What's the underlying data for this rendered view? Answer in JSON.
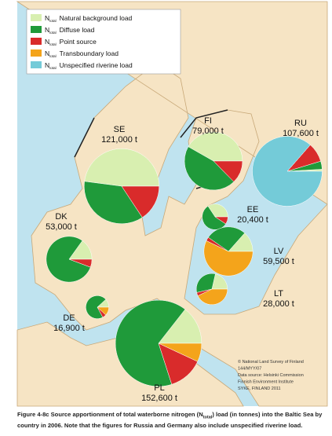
{
  "legend": [
    {
      "symbol": "N",
      "subscript": "total",
      "label": "Natural background load",
      "color": "#d8efb0"
    },
    {
      "symbol": "N",
      "subscript": "total",
      "label": "Diffuse load",
      "color": "#1f9a3a"
    },
    {
      "symbol": "N",
      "subscript": "total",
      "label": "Point source",
      "color": "#d92b2b"
    },
    {
      "symbol": "N",
      "subscript": "total",
      "label": "Transboundary load",
      "color": "#f4a41b"
    },
    {
      "symbol": "N",
      "subscript": "total",
      "label": "Unspecified riverine load",
      "color": "#74cbd8"
    }
  ],
  "countries": [
    {
      "code": "SE",
      "load": 121000,
      "load_label": "121,000 t",
      "values": [
        58000,
        44000,
        19000,
        null,
        null
      ]
    },
    {
      "code": "FI",
      "load": 79000,
      "load_label": "79,000 t",
      "values": [
        33000,
        36000,
        10000,
        null,
        null
      ]
    },
    {
      "code": "RU",
      "load": 107600,
      "load_label": "107,600 t",
      "values": [
        1000,
        4000,
        9600,
        null,
        93000
      ]
    },
    {
      "code": "EE",
      "load": 20400,
      "load_label": "20,400 t",
      "values": [
        7000,
        11500,
        1900,
        null,
        null
      ]
    },
    {
      "code": "LV",
      "load": 59500,
      "load_label": "59,500 t",
      "values": [
        8000,
        16000,
        1500,
        34000,
        null
      ]
    },
    {
      "code": "LT",
      "load": 28000,
      "load_label": "28,000 t",
      "values": [
        6000,
        9000,
        1000,
        12000,
        null
      ]
    },
    {
      "code": "DK",
      "load": 53000,
      "load_label": "53,000 t",
      "values": [
        8000,
        42000,
        3000,
        null,
        null
      ]
    },
    {
      "code": "DE",
      "load": 16900,
      "load_label": "16,900 t",
      "values": [
        2000,
        12000,
        900,
        2000,
        null
      ]
    },
    {
      "code": "PL",
      "load": 152600,
      "load_label": "152,600 t",
      "values": [
        22000,
        100000,
        20000,
        10600,
        null
      ]
    }
  ],
  "credits": [
    "© National Land Survey of Finland",
    "144/MYY/07",
    "Data source: Helsinki Commission",
    "Finnish Environment Institute",
    "SYKE, FINLAND 2011"
  ],
  "caption": {
    "before": "Figure 4-8c Source apportionment of total waterborne nitrogen (N",
    "subscript": "total",
    "after": ") load (in tonnes) into the Baltic Sea by country in 2006. Note that the figures for Russia and Germany also include unspecified riverine load."
  }
}
